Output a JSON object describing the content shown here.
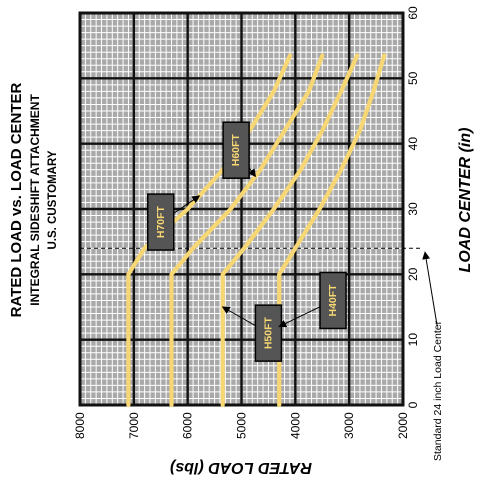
{
  "chart_data": {
    "type": "line",
    "title": "RATED LOAD vs. LOAD CENTER",
    "subtitle": "INTEGRAL SIDESHIFT ATTACHMENT",
    "subtitle2": "U.S. CUSTOMARY",
    "xlabel": "LOAD CENTER (in)",
    "ylabel": "RATED LOAD (lbs)",
    "xlim": [
      0,
      60
    ],
    "ylim": [
      2000,
      8000
    ],
    "xticks": [
      "0",
      "10",
      "20",
      "30",
      "40",
      "50",
      "60"
    ],
    "yticks": [
      "8000",
      "7000",
      "6000",
      "5000",
      "4000",
      "3000",
      "2000"
    ],
    "grid": true,
    "reference_line": {
      "x": 24,
      "label": "Standard 24 inch Load Center"
    },
    "series": [
      {
        "name": "H70FT",
        "x": [
          0,
          20,
          24,
          30,
          36,
          42,
          48,
          53.5
        ],
        "y": [
          7100,
          7100,
          6800,
          6000,
          5350,
          4850,
          4400,
          4100
        ],
        "label_at": [
          28,
          6500
        ]
      },
      {
        "name": "H60FT",
        "x": [
          0,
          20,
          24,
          30,
          36,
          42,
          48,
          53.5
        ],
        "y": [
          6300,
          6300,
          5900,
          5200,
          4650,
          4200,
          3750,
          3500
        ],
        "label_at": [
          39,
          5100
        ]
      },
      {
        "name": "H50FT",
        "x": [
          0,
          20,
          24,
          30,
          36,
          42,
          48,
          53.5
        ],
        "y": [
          5350,
          5350,
          4950,
          4400,
          3900,
          3500,
          3150,
          2850
        ],
        "label_at": [
          11,
          4500
        ]
      },
      {
        "name": "H40FT",
        "x": [
          0,
          20,
          24,
          30,
          36,
          42,
          48,
          53.5
        ],
        "y": [
          4300,
          4300,
          4000,
          3550,
          3150,
          2800,
          2550,
          2350
        ],
        "label_at": [
          16,
          3300
        ]
      }
    ],
    "colors": {
      "curve": "#f7d774",
      "label_box": "#555555",
      "grid_bg": "#a9a9a9",
      "grid_minor": "#ffffff",
      "grid_major": "#111111"
    }
  }
}
